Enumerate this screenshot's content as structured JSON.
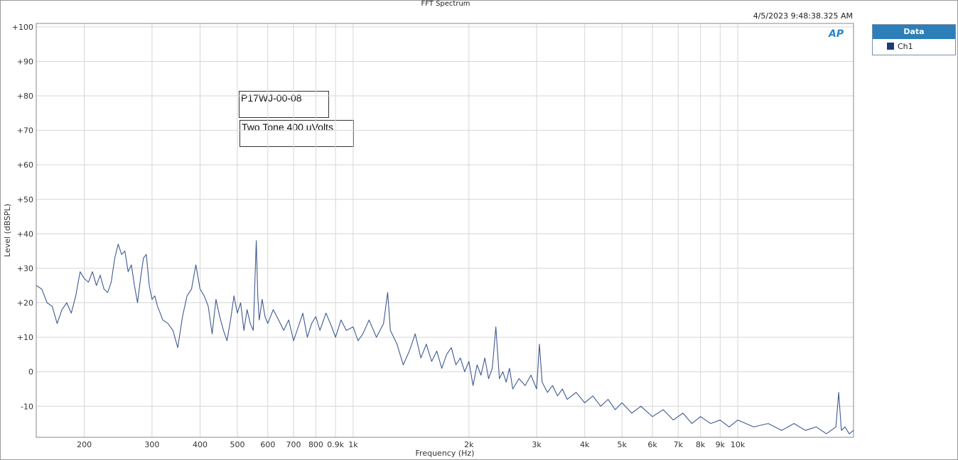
{
  "chart_data": {
    "type": "line",
    "title": "FFT Spectrum",
    "timestamp": "4/5/2023 9:48:38.325 AM",
    "xlabel": "Frequency (Hz)",
    "ylabel": "Level (dBSPL)",
    "x_scale": "log",
    "xlim": [
      150,
      20000
    ],
    "ylim": [
      -19,
      101
    ],
    "grid": true,
    "legend": {
      "title": "Data",
      "position": "right",
      "entries": [
        "Ch1"
      ]
    },
    "annotations": [
      "P17WJ-00-08",
      "Two Tone 400 uVolts"
    ],
    "x_ticks": [
      {
        "value": 200,
        "label": "200"
      },
      {
        "value": 300,
        "label": "300"
      },
      {
        "value": 400,
        "label": "400"
      },
      {
        "value": 500,
        "label": "500"
      },
      {
        "value": 600,
        "label": "600"
      },
      {
        "value": 700,
        "label": "700"
      },
      {
        "value": 800,
        "label": "800"
      },
      {
        "value": 900,
        "label": "0.9k"
      },
      {
        "value": 1000,
        "label": "1k"
      },
      {
        "value": 2000,
        "label": "2k"
      },
      {
        "value": 3000,
        "label": "3k"
      },
      {
        "value": 4000,
        "label": "4k"
      },
      {
        "value": 5000,
        "label": "5k"
      },
      {
        "value": 6000,
        "label": "6k"
      },
      {
        "value": 7000,
        "label": "7k"
      },
      {
        "value": 8000,
        "label": "8k"
      },
      {
        "value": 9000,
        "label": "9k"
      },
      {
        "value": 10000,
        "label": "10k"
      }
    ],
    "y_ticks": [
      {
        "value": 100,
        "label": "+100"
      },
      {
        "value": 90,
        "label": "+90"
      },
      {
        "value": 80,
        "label": "+80"
      },
      {
        "value": 70,
        "label": "+70"
      },
      {
        "value": 60,
        "label": "+60"
      },
      {
        "value": 50,
        "label": "+50"
      },
      {
        "value": 40,
        "label": "+40"
      },
      {
        "value": 30,
        "label": "+30"
      },
      {
        "value": 20,
        "label": "+20"
      },
      {
        "value": 10,
        "label": "+10"
      },
      {
        "value": 0,
        "label": "0"
      },
      {
        "value": -10,
        "label": "-10"
      }
    ],
    "series": [
      {
        "name": "Ch1",
        "color": "#3f5a92",
        "points": [
          [
            150,
            25
          ],
          [
            155,
            24
          ],
          [
            160,
            20
          ],
          [
            165,
            19
          ],
          [
            170,
            14
          ],
          [
            175,
            18
          ],
          [
            180,
            20
          ],
          [
            185,
            17
          ],
          [
            190,
            22
          ],
          [
            195,
            29
          ],
          [
            200,
            27
          ],
          [
            205,
            26
          ],
          [
            210,
            29
          ],
          [
            215,
            25
          ],
          [
            220,
            28
          ],
          [
            225,
            24
          ],
          [
            230,
            23
          ],
          [
            235,
            26
          ],
          [
            240,
            33
          ],
          [
            245,
            37
          ],
          [
            250,
            34
          ],
          [
            255,
            35
          ],
          [
            260,
            29
          ],
          [
            265,
            31
          ],
          [
            270,
            25
          ],
          [
            275,
            20
          ],
          [
            280,
            27
          ],
          [
            285,
            33
          ],
          [
            290,
            34
          ],
          [
            295,
            25
          ],
          [
            300,
            21
          ],
          [
            305,
            22
          ],
          [
            310,
            19
          ],
          [
            315,
            17
          ],
          [
            320,
            15
          ],
          [
            330,
            14
          ],
          [
            340,
            12
          ],
          [
            350,
            7
          ],
          [
            360,
            16
          ],
          [
            370,
            22
          ],
          [
            380,
            24
          ],
          [
            390,
            31
          ],
          [
            400,
            24
          ],
          [
            410,
            22
          ],
          [
            420,
            19
          ],
          [
            430,
            11
          ],
          [
            440,
            21
          ],
          [
            450,
            16
          ],
          [
            460,
            12
          ],
          [
            470,
            9
          ],
          [
            480,
            15
          ],
          [
            490,
            22
          ],
          [
            500,
            17
          ],
          [
            510,
            20
          ],
          [
            520,
            12
          ],
          [
            530,
            18
          ],
          [
            540,
            14
          ],
          [
            550,
            12
          ],
          [
            555,
            25
          ],
          [
            560,
            38
          ],
          [
            565,
            22
          ],
          [
            570,
            15
          ],
          [
            580,
            21
          ],
          [
            590,
            16
          ],
          [
            600,
            14
          ],
          [
            620,
            18
          ],
          [
            640,
            15
          ],
          [
            660,
            12
          ],
          [
            680,
            15
          ],
          [
            700,
            9
          ],
          [
            720,
            13
          ],
          [
            740,
            17
          ],
          [
            760,
            10
          ],
          [
            780,
            14
          ],
          [
            800,
            16
          ],
          [
            820,
            12
          ],
          [
            850,
            17
          ],
          [
            880,
            13
          ],
          [
            900,
            10
          ],
          [
            930,
            15
          ],
          [
            960,
            12
          ],
          [
            1000,
            13
          ],
          [
            1030,
            9
          ],
          [
            1060,
            11
          ],
          [
            1100,
            15
          ],
          [
            1150,
            10
          ],
          [
            1200,
            14
          ],
          [
            1230,
            23
          ],
          [
            1250,
            12
          ],
          [
            1300,
            8
          ],
          [
            1350,
            2
          ],
          [
            1400,
            6
          ],
          [
            1450,
            11
          ],
          [
            1500,
            4
          ],
          [
            1550,
            8
          ],
          [
            1600,
            3
          ],
          [
            1650,
            6
          ],
          [
            1700,
            1
          ],
          [
            1750,
            5
          ],
          [
            1800,
            7
          ],
          [
            1850,
            2
          ],
          [
            1900,
            4
          ],
          [
            1950,
            0
          ],
          [
            2000,
            3
          ],
          [
            2050,
            -4
          ],
          [
            2100,
            2
          ],
          [
            2150,
            -1
          ],
          [
            2200,
            4
          ],
          [
            2250,
            -2
          ],
          [
            2300,
            1
          ],
          [
            2350,
            13
          ],
          [
            2400,
            -2
          ],
          [
            2450,
            0
          ],
          [
            2500,
            -3
          ],
          [
            2550,
            1
          ],
          [
            2600,
            -5
          ],
          [
            2700,
            -2
          ],
          [
            2800,
            -4
          ],
          [
            2900,
            -1
          ],
          [
            3000,
            -5
          ],
          [
            3050,
            8
          ],
          [
            3100,
            -3
          ],
          [
            3200,
            -6
          ],
          [
            3300,
            -4
          ],
          [
            3400,
            -7
          ],
          [
            3500,
            -5
          ],
          [
            3600,
            -8
          ],
          [
            3800,
            -6
          ],
          [
            4000,
            -9
          ],
          [
            4200,
            -7
          ],
          [
            4400,
            -10
          ],
          [
            4600,
            -8
          ],
          [
            4800,
            -11
          ],
          [
            5000,
            -9
          ],
          [
            5300,
            -12
          ],
          [
            5600,
            -10
          ],
          [
            6000,
            -13
          ],
          [
            6400,
            -11
          ],
          [
            6800,
            -14
          ],
          [
            7200,
            -12
          ],
          [
            7600,
            -15
          ],
          [
            8000,
            -13
          ],
          [
            8500,
            -15
          ],
          [
            9000,
            -14
          ],
          [
            9500,
            -16
          ],
          [
            10000,
            -14
          ],
          [
            11000,
            -16
          ],
          [
            12000,
            -15
          ],
          [
            13000,
            -17
          ],
          [
            14000,
            -15
          ],
          [
            15000,
            -17
          ],
          [
            16000,
            -16
          ],
          [
            17000,
            -18
          ],
          [
            18000,
            -16
          ],
          [
            18300,
            -6
          ],
          [
            18600,
            -17
          ],
          [
            19000,
            -16
          ],
          [
            19500,
            -18
          ],
          [
            20000,
            -17
          ]
        ]
      }
    ]
  }
}
